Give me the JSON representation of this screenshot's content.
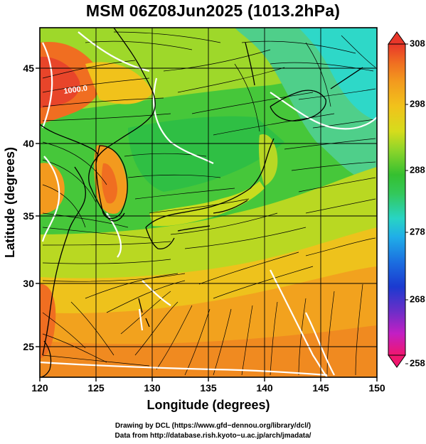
{
  "title": "MSM 06Z08Jun2025 (1013.2hPa)",
  "map": {
    "projection": "lat-lon",
    "lon_range": [
      120,
      150
    ],
    "lat_range": [
      22.4,
      48
    ],
    "field": "temperature",
    "overlays": [
      "streamlines",
      "pressure-contours",
      "coastlines",
      "lat-lon-grid"
    ],
    "contour_label": "1000.0",
    "x_ticks": [
      "120",
      "125",
      "130",
      "135",
      "140",
      "145",
      "150"
    ],
    "y_ticks": [
      "25",
      "30",
      "35",
      "40",
      "45"
    ],
    "xlabel": "Longitude (degrees)",
    "ylabel": "Latitude (degrees)"
  },
  "colorbar": {
    "min": 258,
    "max": 308,
    "ticks": [
      "308",
      "298",
      "288",
      "278",
      "268",
      "258"
    ],
    "colors": [
      "#f0166e",
      "#c21fc4",
      "#6d2ec8",
      "#1b3ad0",
      "#1b6fe0",
      "#20aee8",
      "#28d4c4",
      "#33c85a",
      "#35c030",
      "#8fd52a",
      "#d6dc1c",
      "#f1c21b",
      "#f39a1e",
      "#f06e21",
      "#e8372a"
    ]
  },
  "credits": {
    "line1": "Drawing by DCL (https://www.gfd−dennou.org/library/dcl/)",
    "line2": "Data from http://database.rish.kyoto−u.ac.jp/arch/jmadata/"
  }
}
